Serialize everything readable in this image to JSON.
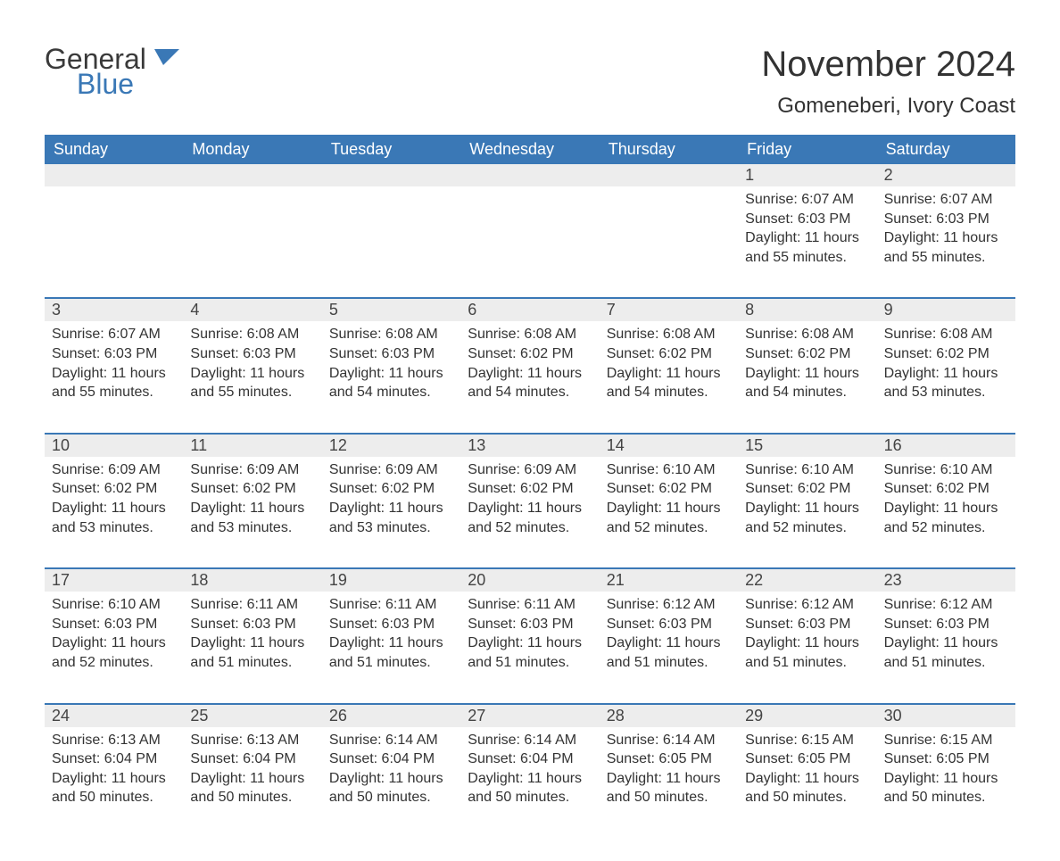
{
  "logo": {
    "text_general": "General",
    "text_blue": "Blue"
  },
  "title": "November 2024",
  "location": "Gomeneberi, Ivory Coast",
  "colors": {
    "header_bg": "#3a78b6",
    "header_text": "#ffffff",
    "daynum_bg": "#ededed",
    "accent_border": "#3a78b6",
    "body_text": "#333333",
    "page_bg": "#ffffff"
  },
  "day_headers": [
    "Sunday",
    "Monday",
    "Tuesday",
    "Wednesday",
    "Thursday",
    "Friday",
    "Saturday"
  ],
  "weeks": [
    [
      null,
      null,
      null,
      null,
      null,
      {
        "n": "1",
        "sr": "6:07 AM",
        "ss": "6:03 PM",
        "dl": "11 hours and 55 minutes."
      },
      {
        "n": "2",
        "sr": "6:07 AM",
        "ss": "6:03 PM",
        "dl": "11 hours and 55 minutes."
      }
    ],
    [
      {
        "n": "3",
        "sr": "6:07 AM",
        "ss": "6:03 PM",
        "dl": "11 hours and 55 minutes."
      },
      {
        "n": "4",
        "sr": "6:08 AM",
        "ss": "6:03 PM",
        "dl": "11 hours and 55 minutes."
      },
      {
        "n": "5",
        "sr": "6:08 AM",
        "ss": "6:03 PM",
        "dl": "11 hours and 54 minutes."
      },
      {
        "n": "6",
        "sr": "6:08 AM",
        "ss": "6:02 PM",
        "dl": "11 hours and 54 minutes."
      },
      {
        "n": "7",
        "sr": "6:08 AM",
        "ss": "6:02 PM",
        "dl": "11 hours and 54 minutes."
      },
      {
        "n": "8",
        "sr": "6:08 AM",
        "ss": "6:02 PM",
        "dl": "11 hours and 54 minutes."
      },
      {
        "n": "9",
        "sr": "6:08 AM",
        "ss": "6:02 PM",
        "dl": "11 hours and 53 minutes."
      }
    ],
    [
      {
        "n": "10",
        "sr": "6:09 AM",
        "ss": "6:02 PM",
        "dl": "11 hours and 53 minutes."
      },
      {
        "n": "11",
        "sr": "6:09 AM",
        "ss": "6:02 PM",
        "dl": "11 hours and 53 minutes."
      },
      {
        "n": "12",
        "sr": "6:09 AM",
        "ss": "6:02 PM",
        "dl": "11 hours and 53 minutes."
      },
      {
        "n": "13",
        "sr": "6:09 AM",
        "ss": "6:02 PM",
        "dl": "11 hours and 52 minutes."
      },
      {
        "n": "14",
        "sr": "6:10 AM",
        "ss": "6:02 PM",
        "dl": "11 hours and 52 minutes."
      },
      {
        "n": "15",
        "sr": "6:10 AM",
        "ss": "6:02 PM",
        "dl": "11 hours and 52 minutes."
      },
      {
        "n": "16",
        "sr": "6:10 AM",
        "ss": "6:02 PM",
        "dl": "11 hours and 52 minutes."
      }
    ],
    [
      {
        "n": "17",
        "sr": "6:10 AM",
        "ss": "6:03 PM",
        "dl": "11 hours and 52 minutes."
      },
      {
        "n": "18",
        "sr": "6:11 AM",
        "ss": "6:03 PM",
        "dl": "11 hours and 51 minutes."
      },
      {
        "n": "19",
        "sr": "6:11 AM",
        "ss": "6:03 PM",
        "dl": "11 hours and 51 minutes."
      },
      {
        "n": "20",
        "sr": "6:11 AM",
        "ss": "6:03 PM",
        "dl": "11 hours and 51 minutes."
      },
      {
        "n": "21",
        "sr": "6:12 AM",
        "ss": "6:03 PM",
        "dl": "11 hours and 51 minutes."
      },
      {
        "n": "22",
        "sr": "6:12 AM",
        "ss": "6:03 PM",
        "dl": "11 hours and 51 minutes."
      },
      {
        "n": "23",
        "sr": "6:12 AM",
        "ss": "6:03 PM",
        "dl": "11 hours and 51 minutes."
      }
    ],
    [
      {
        "n": "24",
        "sr": "6:13 AM",
        "ss": "6:04 PM",
        "dl": "11 hours and 50 minutes."
      },
      {
        "n": "25",
        "sr": "6:13 AM",
        "ss": "6:04 PM",
        "dl": "11 hours and 50 minutes."
      },
      {
        "n": "26",
        "sr": "6:14 AM",
        "ss": "6:04 PM",
        "dl": "11 hours and 50 minutes."
      },
      {
        "n": "27",
        "sr": "6:14 AM",
        "ss": "6:04 PM",
        "dl": "11 hours and 50 minutes."
      },
      {
        "n": "28",
        "sr": "6:14 AM",
        "ss": "6:05 PM",
        "dl": "11 hours and 50 minutes."
      },
      {
        "n": "29",
        "sr": "6:15 AM",
        "ss": "6:05 PM",
        "dl": "11 hours and 50 minutes."
      },
      {
        "n": "30",
        "sr": "6:15 AM",
        "ss": "6:05 PM",
        "dl": "11 hours and 50 minutes."
      }
    ]
  ],
  "labels": {
    "sunrise": "Sunrise:",
    "sunset": "Sunset:",
    "daylight": "Daylight:"
  }
}
